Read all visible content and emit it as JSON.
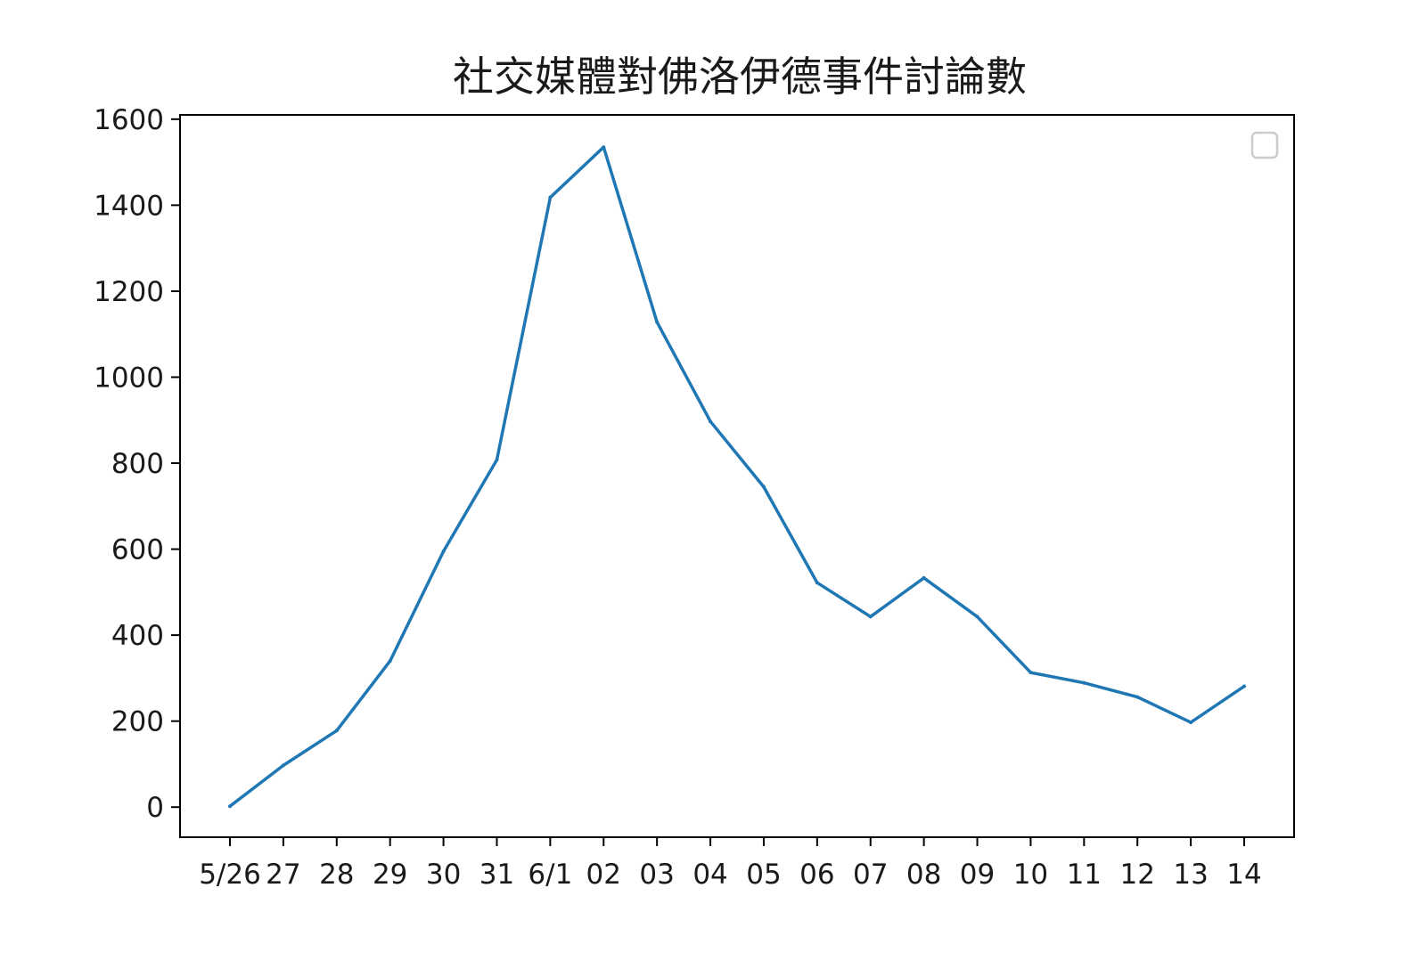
{
  "chart_data": {
    "type": "line",
    "title": "社交媒體對佛洛伊德事件討論數",
    "xlabel": "",
    "ylabel": "",
    "categories": [
      "5/26",
      "27",
      "28",
      "29",
      "30",
      "31",
      "6/1",
      "02",
      "03",
      "04",
      "05",
      "06",
      "07",
      "08",
      "09",
      "10",
      "11",
      "12",
      "13",
      "14"
    ],
    "series": [
      {
        "values": [
          2,
          97,
          178,
          340,
          595,
          808,
          1418,
          1535,
          1128,
          897,
          745,
          522,
          443,
          533,
          443,
          313,
          289,
          256,
          197,
          281
        ]
      }
    ],
    "ylim": [
      -70,
      1610
    ],
    "yticks": [
      0,
      200,
      400,
      600,
      800,
      1000,
      1200,
      1400,
      1600
    ],
    "grid": false,
    "legend": "top-right (empty)",
    "colors": {
      "line": "#1f77b4",
      "axes": "#000000",
      "legend_border": "#cccccc"
    }
  }
}
